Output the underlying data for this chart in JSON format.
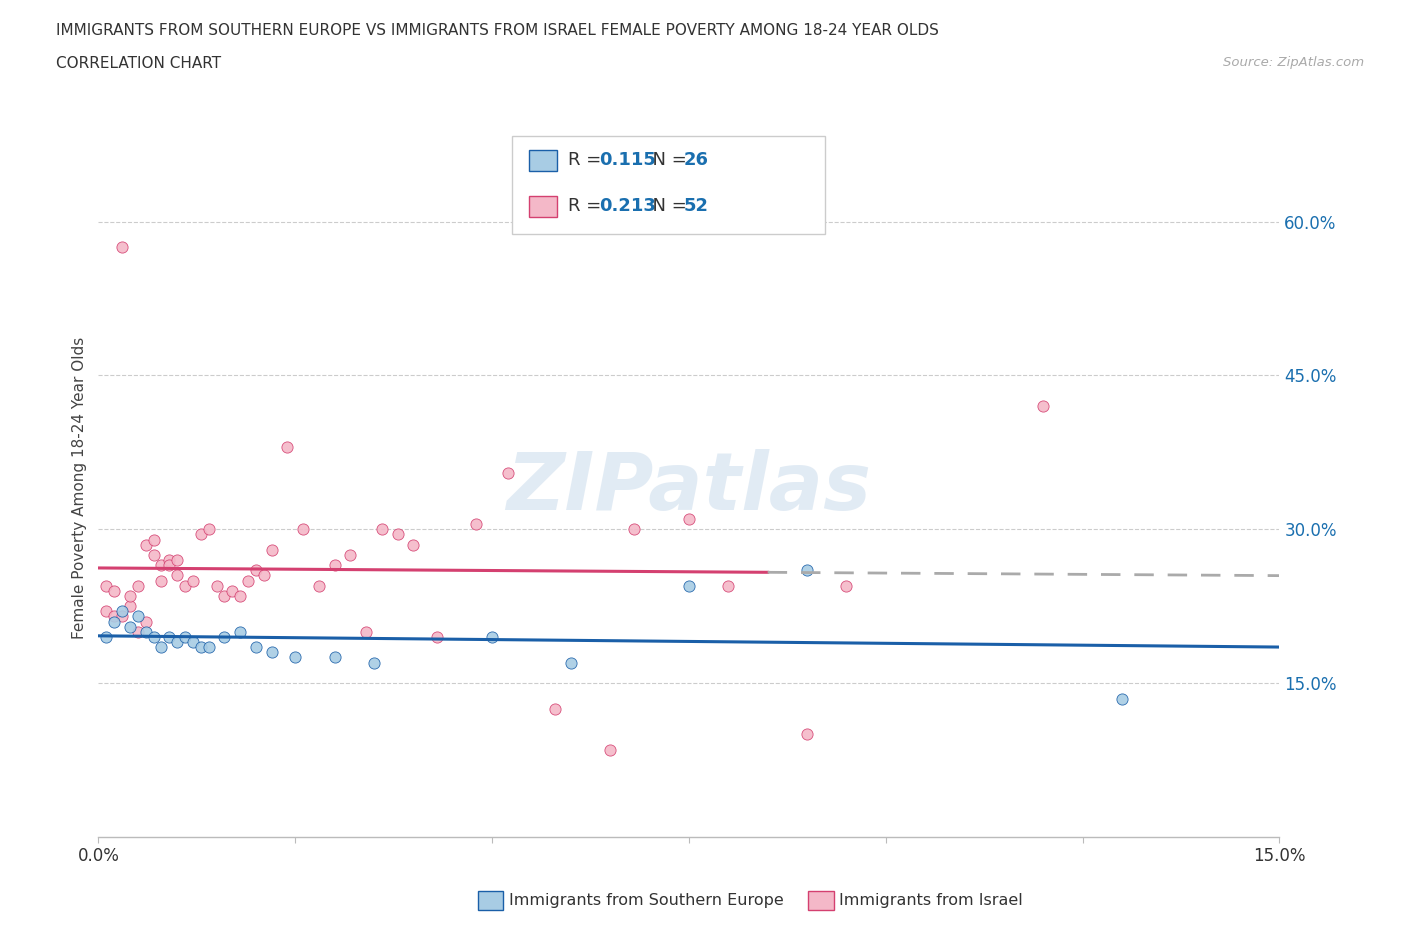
{
  "title_line1": "IMMIGRANTS FROM SOUTHERN EUROPE VS IMMIGRANTS FROM ISRAEL FEMALE POVERTY AMONG 18-24 YEAR OLDS",
  "title_line2": "CORRELATION CHART",
  "source_text": "Source: ZipAtlas.com",
  "ylabel": "Female Poverty Among 18-24 Year Olds",
  "legend_label_blue": "Immigrants from Southern Europe",
  "legend_label_pink": "Immigrants from Israel",
  "r_blue": "0.115",
  "n_blue": "26",
  "r_pink": "0.213",
  "n_pink": "52",
  "xlim": [
    0.0,
    0.15
  ],
  "ylim": [
    0.0,
    0.68
  ],
  "y_ticks_right": [
    0.15,
    0.3,
    0.45,
    0.6
  ],
  "y_tick_labels_right": [
    "15.0%",
    "30.0%",
    "45.0%",
    "60.0%"
  ],
  "color_blue": "#a8cce4",
  "color_pink": "#f4b8c8",
  "color_blue_line": "#1a5fa8",
  "color_pink_line": "#d44070",
  "watermark_color": "#c5d8ea",
  "background_color": "#ffffff",
  "grid_color": "#cccccc",
  "blue_scatter_x": [
    0.001,
    0.002,
    0.003,
    0.004,
    0.005,
    0.006,
    0.007,
    0.008,
    0.009,
    0.01,
    0.011,
    0.012,
    0.013,
    0.014,
    0.016,
    0.018,
    0.02,
    0.022,
    0.025,
    0.03,
    0.035,
    0.05,
    0.06,
    0.075,
    0.09,
    0.13
  ],
  "blue_scatter_y": [
    0.195,
    0.21,
    0.22,
    0.205,
    0.215,
    0.2,
    0.195,
    0.185,
    0.195,
    0.19,
    0.195,
    0.19,
    0.185,
    0.185,
    0.195,
    0.2,
    0.185,
    0.18,
    0.175,
    0.175,
    0.17,
    0.195,
    0.17,
    0.245,
    0.26,
    0.135
  ],
  "pink_scatter_x": [
    0.001,
    0.001,
    0.002,
    0.002,
    0.003,
    0.003,
    0.004,
    0.004,
    0.005,
    0.005,
    0.006,
    0.006,
    0.007,
    0.007,
    0.008,
    0.008,
    0.009,
    0.009,
    0.01,
    0.01,
    0.011,
    0.012,
    0.013,
    0.014,
    0.015,
    0.016,
    0.017,
    0.018,
    0.019,
    0.02,
    0.021,
    0.022,
    0.024,
    0.026,
    0.028,
    0.03,
    0.032,
    0.034,
    0.036,
    0.038,
    0.04,
    0.043,
    0.048,
    0.052,
    0.058,
    0.065,
    0.068,
    0.075,
    0.08,
    0.09,
    0.095,
    0.12
  ],
  "pink_scatter_y": [
    0.245,
    0.22,
    0.24,
    0.215,
    0.575,
    0.215,
    0.225,
    0.235,
    0.245,
    0.2,
    0.21,
    0.285,
    0.29,
    0.275,
    0.265,
    0.25,
    0.27,
    0.265,
    0.255,
    0.27,
    0.245,
    0.25,
    0.295,
    0.3,
    0.245,
    0.235,
    0.24,
    0.235,
    0.25,
    0.26,
    0.255,
    0.28,
    0.38,
    0.3,
    0.245,
    0.265,
    0.275,
    0.2,
    0.3,
    0.295,
    0.285,
    0.195,
    0.305,
    0.355,
    0.125,
    0.085,
    0.3,
    0.31,
    0.245,
    0.1,
    0.245,
    0.42
  ]
}
